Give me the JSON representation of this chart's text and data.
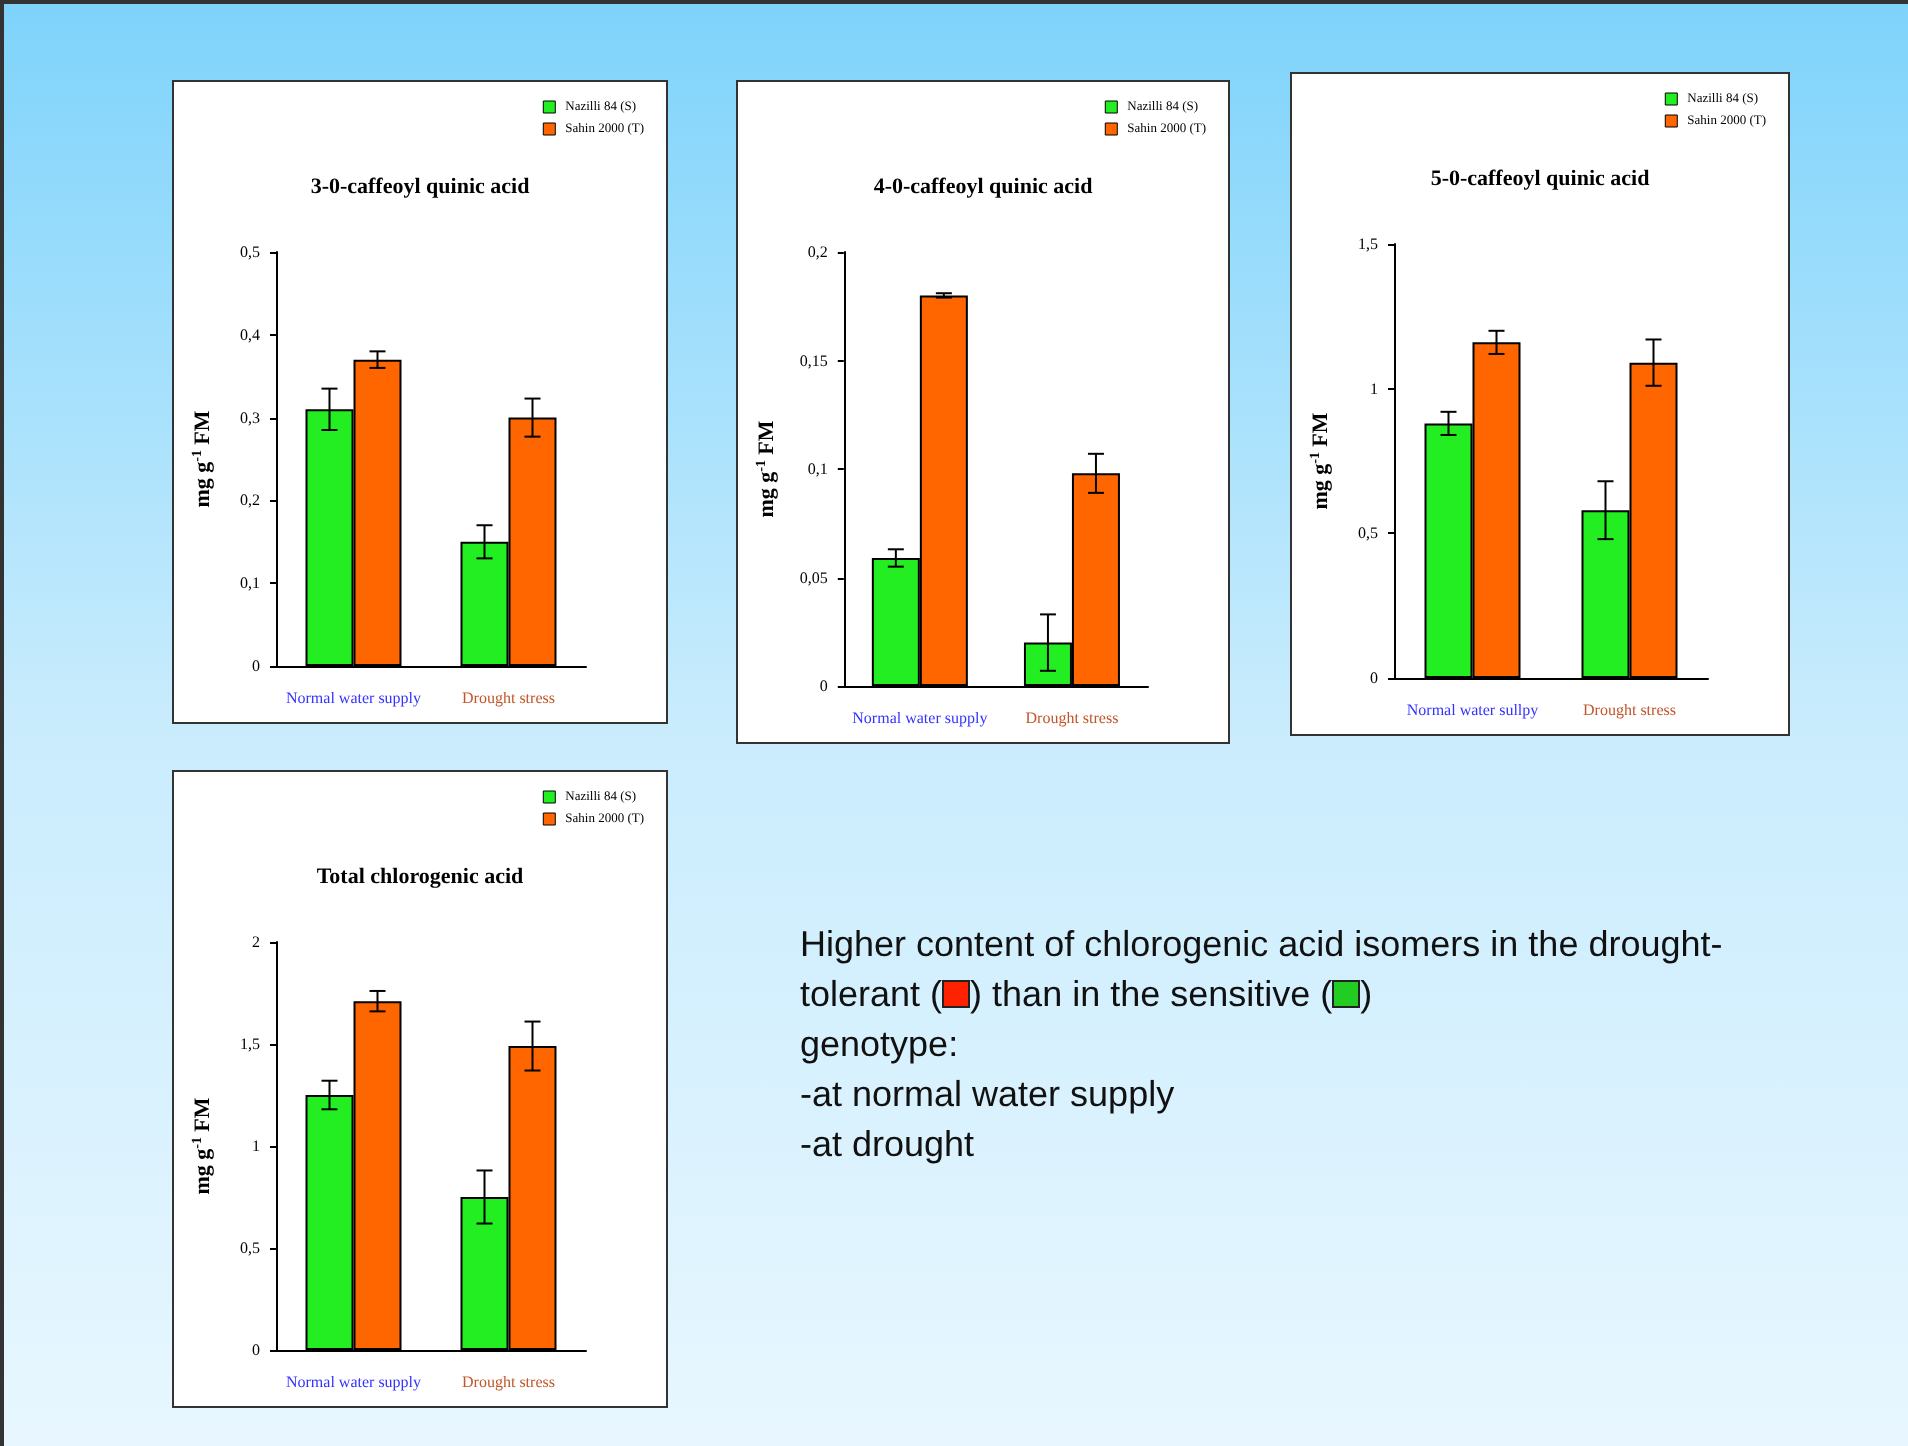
{
  "chart_data": [
    {
      "type": "bar",
      "title": "3-0-caffeoyl quinic acid",
      "ylabel": "mg g$^{-1}$ FM",
      "categories": [
        "Normal water supply",
        "Drought stress"
      ],
      "legend": "top right",
      "ylim": [
        0,
        0.5
      ],
      "yticks": [
        0,
        {
          "value": 0.1,
          "label": "0,1"
        },
        {
          "value": 0.2,
          "label": "0,2"
        },
        {
          "value": 0.3,
          "label": "0,3"
        },
        {
          "value": 0.4,
          "label": "0,4"
        },
        {
          "value": 0.5,
          "label": "0,5"
        }
      ],
      "series": [
        {
          "name": "Nazilli 84 (S)",
          "color": "#22ee22",
          "values": [
            0.31,
            0.15
          ],
          "errors": [
            0.025,
            0.02
          ]
        },
        {
          "name": "Sahin 2000 (T)",
          "color": "#ff6600",
          "values": [
            0.37,
            0.3
          ],
          "errors": [
            0.01,
            0.023
          ]
        }
      ]
    },
    {
      "type": "bar",
      "title": "4-0-caffeoyl quinic acid",
      "ylabel": "mg g$^{-1}$ FM",
      "categories": [
        "Normal water supply",
        "Drought stress"
      ],
      "legend": "top right",
      "ylim": [
        0,
        0.2
      ],
      "yticks": [
        0,
        {
          "value": 0.05,
          "label": "0,05"
        },
        {
          "value": 0.1,
          "label": "0,1"
        },
        {
          "value": 0.15,
          "label": "0,15"
        },
        {
          "value": 0.2,
          "label": "0,2"
        }
      ],
      "series": [
        {
          "name": "Nazilli 84 (S)",
          "color": "#22ee22",
          "values": [
            0.059,
            0.02
          ],
          "errors": [
            0.004,
            0.013
          ]
        },
        {
          "name": "Sahin 2000 (T)",
          "color": "#ff6600",
          "values": [
            0.18,
            0.098
          ],
          "errors": [
            0.001,
            0.009
          ]
        }
      ]
    },
    {
      "type": "bar",
      "title": "5-0-caffeoyl quinic acid",
      "ylabel": "mg g$^{-1}$ FM",
      "categories": [
        "Normal water sullpy",
        "Drought stress"
      ],
      "legend": "top right",
      "ylim": [
        0,
        1.5
      ],
      "yticks": [
        0,
        {
          "value": 0.5,
          "label": "0,5"
        },
        1,
        {
          "value": 1.5,
          "label": "1,5"
        }
      ],
      "series": [
        {
          "name": "Nazilli 84 (S)",
          "color": "#22ee22",
          "values": [
            0.88,
            0.58
          ],
          "errors": [
            0.04,
            0.1
          ]
        },
        {
          "name": "Sahin 2000 (T)",
          "color": "#ff6600",
          "values": [
            1.16,
            1.09
          ],
          "errors": [
            0.04,
            0.08
          ]
        }
      ]
    },
    {
      "type": "bar",
      "title": "Total chlorogenic acid",
      "ylabel": "mg g$^{-1}$ FM",
      "categories": [
        "Normal water supply",
        "Drought stress"
      ],
      "legend": "top right",
      "ylim": [
        0,
        2
      ],
      "yticks": [
        0,
        {
          "value": 0.5,
          "label": "0,5"
        },
        1,
        {
          "value": 1.5,
          "label": "1,5"
        },
        2
      ],
      "series": [
        {
          "name": "Nazilli 84 (S)",
          "color": "#22ee22",
          "values": [
            1.25,
            0.75
          ],
          "errors": [
            0.07,
            0.13
          ]
        },
        {
          "name": "Sahin 2000 (T)",
          "color": "#ff6600",
          "values": [
            1.71,
            1.49
          ],
          "errors": [
            0.05,
            0.12
          ]
        }
      ]
    },
    {
      "type": "other",
      "annotations": [
        "Higher content of chlorogenic acid isomers in the drought-tolerant (",
        ") than in the sensitive (",
        ")",
        "genotype:",
        "-at normal water supply",
        "-at drought"
      ]
    }
  ]
}
